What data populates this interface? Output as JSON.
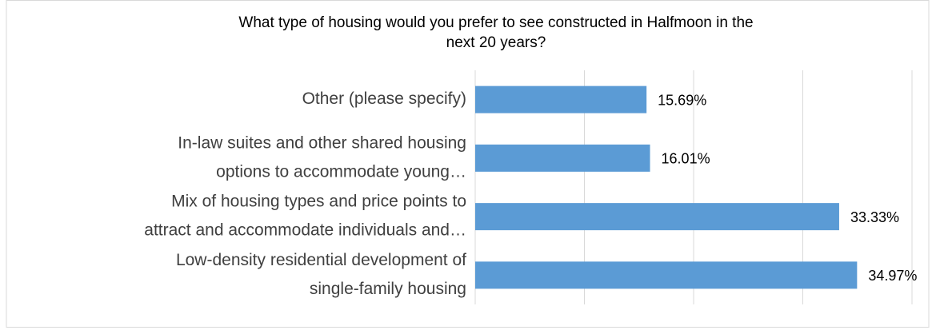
{
  "chart_data": {
    "type": "barh",
    "title": [
      "What type of housing would you prefer to see constructed in Halfmoon in the",
      "next 20 years?"
    ],
    "categories": [
      [
        "Other (please specify)"
      ],
      [
        "In-law suites and other shared housing",
        "options to accommodate young…"
      ],
      [
        "Mix of housing types and price points to",
        "attract and accommodate individuals and…"
      ],
      [
        "Low-density residential development of",
        "single-family housing"
      ]
    ],
    "values": [
      15.69,
      16.01,
      33.33,
      34.97
    ],
    "value_labels": [
      "15.69%",
      "16.01%",
      "33.33%",
      "34.97%"
    ],
    "color": "#5b9bd5",
    "xlim": [
      0,
      40
    ],
    "xticks": [
      0,
      10,
      20,
      30,
      40
    ],
    "grid": true
  }
}
